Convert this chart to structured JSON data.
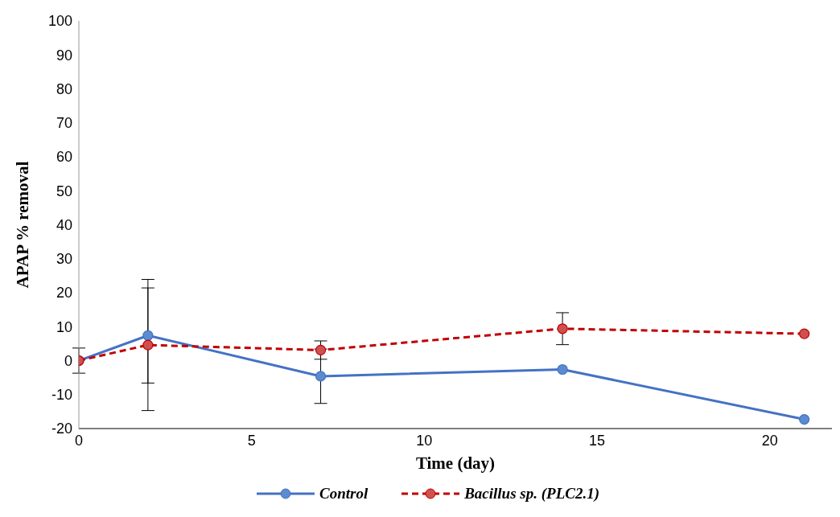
{
  "chart_data": {
    "type": "line",
    "xlabel": "Time (day)",
    "ylabel": "APAP % removal",
    "x": [
      0,
      2,
      7,
      14,
      21
    ],
    "series": [
      {
        "name": "Control",
        "color": "#4472c4",
        "values": [
          0,
          7.4,
          -4.6,
          -2.6,
          -17.3
        ],
        "errors": [
          3.7,
          14,
          8,
          null,
          null
        ],
        "line_style": "solid"
      },
      {
        "name": "Bacillus sp. (PLC2.1)",
        "color": "#c00000",
        "values": [
          0,
          4.6,
          3.1,
          9.4,
          7.9
        ],
        "errors": [
          null,
          19.3,
          2.7,
          4.7,
          null
        ],
        "line_style": "dashed"
      }
    ],
    "xlim": [
      0,
      21.8
    ],
    "xticks": [
      0,
      5,
      10,
      15,
      20
    ],
    "ylim": [
      -20,
      100
    ],
    "yticks": [
      -20,
      -10,
      0,
      10,
      20,
      30,
      40,
      50,
      60,
      70,
      80,
      90,
      100
    ],
    "grid": false,
    "legend": "bottom",
    "marker": "circle"
  }
}
